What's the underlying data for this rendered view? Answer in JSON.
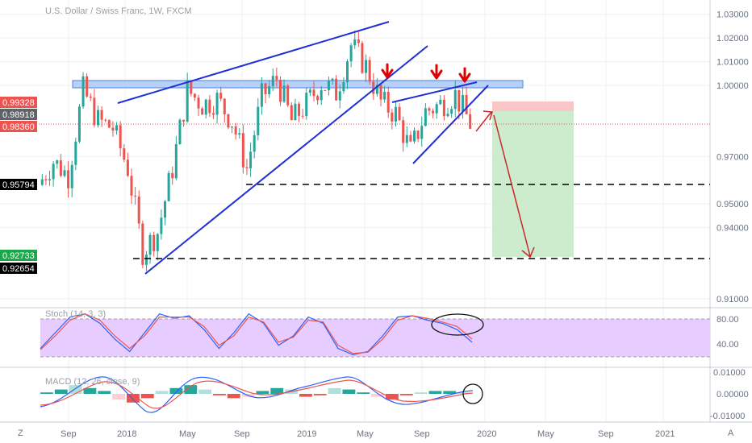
{
  "header": {
    "title": "U.S. Dollar / Swiss Franc, 1W, FXCM"
  },
  "colors": {
    "up": "#26a69a",
    "down": "#ef5350",
    "trendline": "#1f2ed6",
    "zone": "#b8d0f5",
    "stop_zone": "#f8c6c6",
    "target_zone": "#cdeccd",
    "stoch_band": "#e6ccff",
    "marker": "#e00000"
  },
  "chart_data": [
    {
      "type": "candlestick",
      "title": "U.S. Dollar / Swiss Franc, 1W, FXCM",
      "x_ticks": [
        "Sep",
        "2018",
        "May",
        "Sep",
        "2019",
        "May",
        "Sep",
        "2020",
        "May",
        "Sep",
        "2021"
      ],
      "y_ticks": [
        "1.03000",
        "1.02000",
        "1.01000",
        "1.00000",
        "0.97000",
        "0.95000",
        "0.94000",
        "0.91000"
      ],
      "ylim": [
        0.9,
        1.03
      ],
      "price_tags": [
        {
          "label": "0.99328",
          "color": "#ef5350"
        },
        {
          "label": "0.98918",
          "color": "#5f6368"
        },
        {
          "label": "0.98360",
          "color": "#ef5350"
        },
        {
          "label": "0.95794",
          "color": "#000000"
        },
        {
          "label": "0.92733",
          "color": "#1aa84a"
        },
        {
          "label": "0.92654",
          "color": "#000000"
        }
      ],
      "close_path": [
        [
          "2017-07",
          0.958
        ],
        [
          "2017-08",
          0.968
        ],
        [
          "2017-09",
          0.962
        ],
        [
          "2017-10",
          0.998
        ],
        [
          "2017-11",
          0.985
        ],
        [
          "2017-12",
          0.982
        ],
        [
          "2018-01",
          0.965
        ],
        [
          "2018-02",
          0.93
        ],
        [
          "2018-03",
          0.938
        ],
        [
          "2018-04",
          0.965
        ],
        [
          "2018-05",
          0.998
        ],
        [
          "2018-06",
          0.992
        ],
        [
          "2018-07",
          0.994
        ],
        [
          "2018-08",
          0.985
        ],
        [
          "2018-09",
          0.965
        ],
        [
          "2018-10",
          0.995
        ],
        [
          "2018-11",
          1.003
        ],
        [
          "2018-12",
          0.985
        ],
        [
          "2019-01",
          0.992
        ],
        [
          "2019-02",
          1.001
        ],
        [
          "2019-03",
          0.997
        ],
        [
          "2019-04",
          1.017
        ],
        [
          "2019-05",
          1.008
        ],
        [
          "2019-06",
          0.993
        ],
        [
          "2019-07",
          0.988
        ],
        [
          "2019-08",
          0.972
        ],
        [
          "2019-09",
          0.989
        ],
        [
          "2019-10",
          0.992
        ],
        [
          "2019-11",
          0.996
        ],
        [
          "2019-12",
          0.984
        ]
      ],
      "levels": [
        1.0,
        0.95794,
        0.92733
      ],
      "zones": [
        {
          "name": "resistance",
          "from": 0.999,
          "to": 1.002
        },
        {
          "name": "stop",
          "from": 0.98918,
          "to": 0.99328
        },
        {
          "name": "target",
          "from": 0.92733,
          "to": 0.98918
        }
      ]
    },
    {
      "type": "line",
      "title": "Stoch (14, 3, 3)",
      "y_ticks": [
        "80.00",
        "40.00"
      ],
      "ylim": [
        0,
        100
      ],
      "band": [
        20,
        80
      ],
      "series": [
        {
          "values": [
            30,
            55,
            80,
            85,
            70,
            45,
            25,
            55,
            85,
            78,
            82,
            60,
            30,
            55,
            85,
            70,
            35,
            50,
            80,
            70,
            30,
            20,
            25,
            50,
            80,
            82,
            75,
            70,
            60,
            40
          ]
        },
        {
          "values": [
            28,
            50,
            75,
            85,
            75,
            50,
            30,
            50,
            80,
            80,
            80,
            65,
            35,
            50,
            80,
            72,
            40,
            48,
            75,
            72,
            35,
            22,
            24,
            45,
            75,
            82,
            78,
            72,
            65,
            45
          ]
        }
      ]
    },
    {
      "type": "bar",
      "title": "MACD (12, 26, close, 9)",
      "y_ticks": [
        "0.01000",
        "0.00000",
        "-0.01000"
      ],
      "ylim": [
        -0.015,
        0.015
      ],
      "histogram": [
        0.001,
        0.003,
        0.006,
        0.004,
        0.002,
        -0.004,
        -0.006,
        -0.003,
        0.002,
        0.004,
        0.006,
        0.003,
        -0.001,
        -0.003,
        -0.002,
        0.002,
        0.004,
        0.003,
        -0.002,
        -0.001,
        0.004,
        0.003,
        0.001,
        -0.002,
        -0.004,
        -0.001,
        0.001,
        0.002,
        0.002,
        0.001
      ]
    }
  ]
}
